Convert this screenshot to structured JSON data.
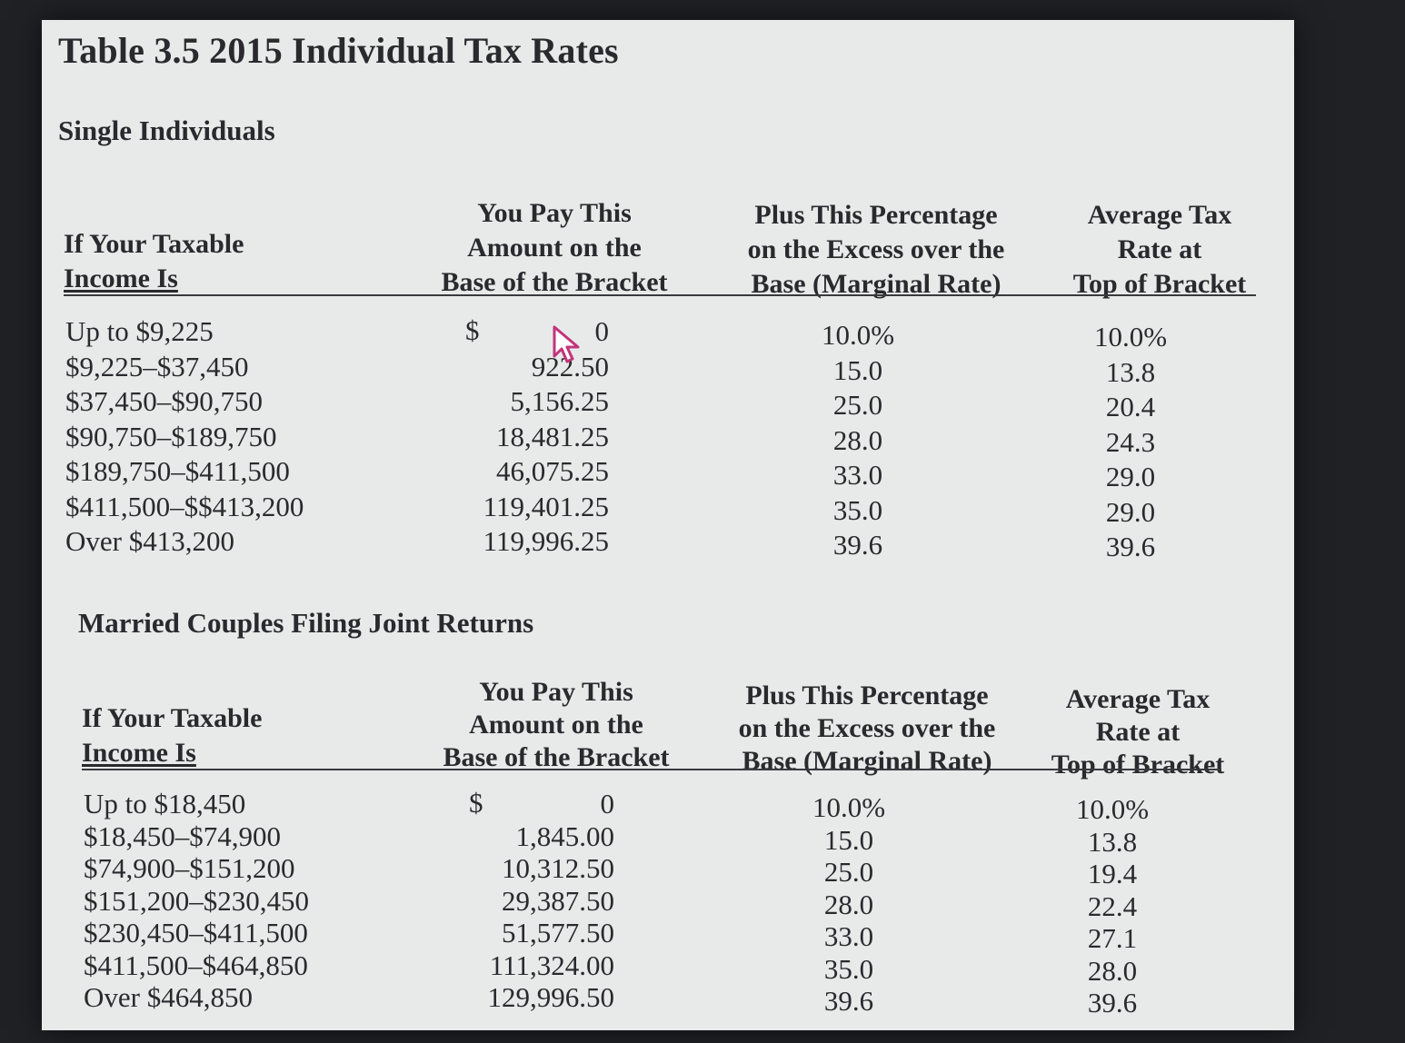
{
  "title": "Table 3.5  2015 Individual Tax Rates",
  "sections": [
    {
      "name": "Single Individuals",
      "headers": {
        "income": [
          "If Your Taxable",
          "Income Is"
        ],
        "base": [
          "You Pay This",
          "Amount on the",
          "Base of the Bracket"
        ],
        "marginal": [
          "Plus This Percentage",
          "on the Excess over the",
          "Base (Marginal Rate)"
        ],
        "average": [
          "Average Tax",
          "Rate at",
          "Top of Bracket"
        ]
      },
      "currency_symbol": "$",
      "rows": [
        {
          "income": "Up to $9,225",
          "base": "0",
          "marginal": "10.0%",
          "average": "10.0%"
        },
        {
          "income": "$9,225–$37,450",
          "base": "922.50",
          "marginal": "15.0",
          "average": "13.8"
        },
        {
          "income": "$37,450–$90,750",
          "base": "5,156.25",
          "marginal": "25.0",
          "average": "20.4"
        },
        {
          "income": "$90,750–$189,750",
          "base": "18,481.25",
          "marginal": "28.0",
          "average": "24.3"
        },
        {
          "income": "$189,750–$411,500",
          "base": "46,075.25",
          "marginal": "33.0",
          "average": "29.0"
        },
        {
          "income": "$411,500–$$413,200",
          "base": "119,401.25",
          "marginal": "35.0",
          "average": "29.0"
        },
        {
          "income": "Over $413,200",
          "base": "119,996.25",
          "marginal": "39.6",
          "average": "39.6"
        }
      ]
    },
    {
      "name": "Married Couples Filing Joint Returns",
      "headers": {
        "income": [
          "If Your Taxable",
          "Income Is"
        ],
        "base": [
          "You Pay This",
          "Amount on the",
          "Base of the Bracket"
        ],
        "marginal": [
          "Plus This Percentage",
          "on the Excess over the",
          "Base (Marginal Rate)"
        ],
        "average": [
          "Average Tax",
          "Rate at",
          "Top of Bracket"
        ]
      },
      "currency_symbol": "$",
      "rows": [
        {
          "income": "Up to $18,450",
          "base": "0",
          "marginal": "10.0%",
          "average": "10.0%"
        },
        {
          "income": "$18,450–$74,900",
          "base": "1,845.00",
          "marginal": "15.0",
          "average": "13.8"
        },
        {
          "income": "$74,900–$151,200",
          "base": "10,312.50",
          "marginal": "25.0",
          "average": "19.4"
        },
        {
          "income": "$151,200–$230,450",
          "base": "29,387.50",
          "marginal": "28.0",
          "average": "22.4"
        },
        {
          "income": "$230,450–$411,500",
          "base": "51,577.50",
          "marginal": "33.0",
          "average": "27.1"
        },
        {
          "income": "$411,500–$464,850",
          "base": "111,324.00",
          "marginal": "35.0",
          "average": "28.0"
        },
        {
          "income": "Over $464,850",
          "base": "129,996.50",
          "marginal": "39.6",
          "average": "39.6"
        }
      ]
    }
  ],
  "colors": {
    "screen": "#e8eae9",
    "text": "#2a2a2e",
    "bezel": "#1f2125"
  }
}
